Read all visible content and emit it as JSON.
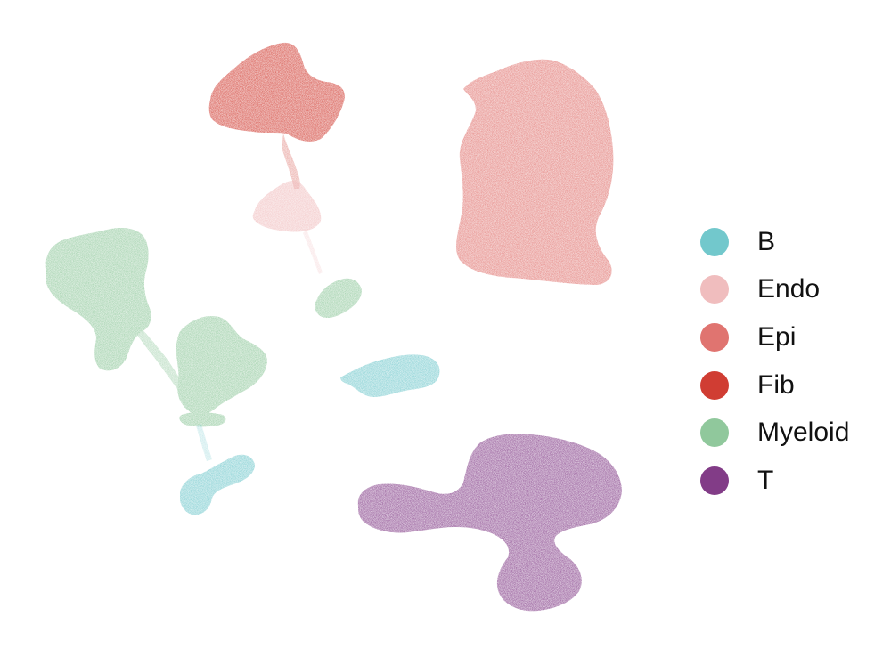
{
  "chart_data": {
    "type": "scatter",
    "title": "",
    "xlabel": "",
    "ylabel": "",
    "grid": false,
    "axes_visible": false,
    "legend_placement": "right",
    "series": [
      {
        "name": "B",
        "color": "#72C8CC"
      },
      {
        "name": "Endo",
        "color": "#F0BDBE"
      },
      {
        "name": "Epi",
        "color": "#E07470"
      },
      {
        "name": "Fib",
        "color": "#D03D33"
      },
      {
        "name": "Myeloid",
        "color": "#90C89C"
      },
      {
        "name": "T",
        "color": "#823C87"
      }
    ]
  }
}
